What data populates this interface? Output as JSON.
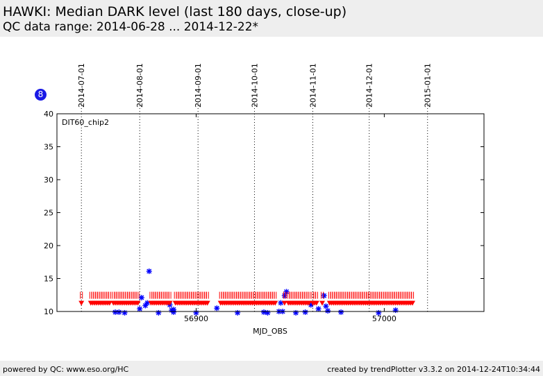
{
  "header": {
    "title": "HAWKI: Median DARK level (last 180 days, close-up)",
    "subtitle": "QC data range: 2014-06-28 ... 2014-12-22*"
  },
  "badge": {
    "label": "8",
    "color": "#1a1ae6"
  },
  "footer": {
    "left": "powered by QC: www.eso.org/HC",
    "right": "created by trendPlotter v3.3.2 on 2014-12-24T10:34:44"
  },
  "chart_data": {
    "type": "scatter",
    "title": "",
    "xlabel": "MJD_OBS",
    "ylabel": "",
    "panel_label": "DIT60_chip2",
    "xlim": [
      56826,
      57053
    ],
    "ylim": [
      10,
      40
    ],
    "x_ticks": [
      56900,
      57000
    ],
    "y_ticks": [
      10,
      15,
      20,
      25,
      30,
      35,
      40
    ],
    "date_lines": [
      {
        "label": "2014-07-01",
        "mjd": 56839
      },
      {
        "label": "2014-08-01",
        "mjd": 56870
      },
      {
        "label": "2014-09-01",
        "mjd": 56901
      },
      {
        "label": "2014-10-01",
        "mjd": 56931
      },
      {
        "label": "2014-11-01",
        "mjd": 56962
      },
      {
        "label": "2014-12-01",
        "mjd": 56992
      },
      {
        "label": "2015-01-01",
        "mjd": 57023
      }
    ],
    "series": [
      {
        "marker": "star",
        "color": "#0000ff",
        "points": [
          [
            56857,
            9.9
          ],
          [
            56859,
            9.9
          ],
          [
            56862,
            9.8
          ],
          [
            56870,
            10.4
          ],
          [
            56871,
            12.1
          ],
          [
            56873,
            10.9
          ],
          [
            56874,
            11.3
          ],
          [
            56875,
            16.1
          ],
          [
            56880,
            9.8
          ],
          [
            56886,
            11.0
          ],
          [
            56887,
            10.2
          ],
          [
            56888,
            10.3
          ],
          [
            56888,
            9.9
          ],
          [
            56900,
            9.8
          ],
          [
            56911,
            10.5
          ],
          [
            56922,
            9.8
          ],
          [
            56936,
            9.9
          ],
          [
            56938,
            9.8
          ],
          [
            56945,
            11.3
          ],
          [
            56944,
            10.0
          ],
          [
            56946,
            10.0
          ],
          [
            56947,
            12.4
          ],
          [
            56948,
            13.0
          ],
          [
            56953,
            9.8
          ],
          [
            56958,
            9.9
          ],
          [
            56961,
            11.0
          ],
          [
            56965,
            10.4
          ],
          [
            56968,
            12.4
          ],
          [
            56969,
            10.8
          ],
          [
            56970,
            10.1
          ],
          [
            56977,
            9.9
          ],
          [
            56997,
            9.8
          ],
          [
            57006,
            10.2
          ]
        ]
      },
      {
        "marker": "tri_down",
        "color": "#ff0000",
        "points": [
          [
            56839,
            11.2
          ],
          [
            56844,
            11.2
          ],
          [
            56845,
            11.2
          ],
          [
            56846,
            11.2
          ],
          [
            56847,
            11.2
          ],
          [
            56848,
            11.2
          ],
          [
            56849,
            11.2
          ],
          [
            56850,
            11.2
          ],
          [
            56851,
            11.2
          ],
          [
            56852,
            11.2
          ],
          [
            56853,
            11.2
          ],
          [
            56854,
            11.2
          ],
          [
            56856,
            11.2
          ],
          [
            56857,
            11.2
          ],
          [
            56858,
            11.2
          ],
          [
            56859,
            11.2
          ],
          [
            56860,
            11.2
          ],
          [
            56861,
            11.2
          ],
          [
            56862,
            11.2
          ],
          [
            56863,
            11.2
          ],
          [
            56864,
            11.2
          ],
          [
            56865,
            11.2
          ],
          [
            56866,
            11.2
          ],
          [
            56867,
            11.2
          ],
          [
            56868,
            11.2
          ],
          [
            56869,
            11.2
          ],
          [
            56876,
            11.2
          ],
          [
            56877,
            11.2
          ],
          [
            56878,
            11.2
          ],
          [
            56879,
            11.2
          ],
          [
            56880,
            11.2
          ],
          [
            56881,
            11.2
          ],
          [
            56882,
            11.2
          ],
          [
            56883,
            11.2
          ],
          [
            56884,
            11.2
          ],
          [
            56885,
            11.2
          ],
          [
            56886,
            11.2
          ],
          [
            56889,
            11.2
          ],
          [
            56890,
            11.2
          ],
          [
            56891,
            11.2
          ],
          [
            56892,
            11.2
          ],
          [
            56893,
            11.2
          ],
          [
            56894,
            11.2
          ],
          [
            56895,
            11.2
          ],
          [
            56896,
            11.2
          ],
          [
            56897,
            11.2
          ],
          [
            56898,
            11.2
          ],
          [
            56899,
            11.2
          ],
          [
            56900,
            11.2
          ],
          [
            56901,
            11.2
          ],
          [
            56902,
            11.2
          ],
          [
            56903,
            11.2
          ],
          [
            56904,
            11.2
          ],
          [
            56905,
            11.2
          ],
          [
            56906,
            11.2
          ],
          [
            56913,
            11.2
          ],
          [
            56914,
            11.2
          ],
          [
            56915,
            11.2
          ],
          [
            56916,
            11.2
          ],
          [
            56917,
            11.2
          ],
          [
            56918,
            11.2
          ],
          [
            56919,
            11.2
          ],
          [
            56920,
            11.2
          ],
          [
            56921,
            11.2
          ],
          [
            56922,
            11.2
          ],
          [
            56923,
            11.2
          ],
          [
            56924,
            11.2
          ],
          [
            56925,
            11.2
          ],
          [
            56926,
            11.2
          ],
          [
            56927,
            11.2
          ],
          [
            56928,
            11.2
          ],
          [
            56929,
            11.2
          ],
          [
            56930,
            11.2
          ],
          [
            56931,
            11.2
          ],
          [
            56932,
            11.2
          ],
          [
            56933,
            11.2
          ],
          [
            56934,
            11.2
          ],
          [
            56935,
            11.2
          ],
          [
            56936,
            11.2
          ],
          [
            56937,
            11.2
          ],
          [
            56938,
            11.2
          ],
          [
            56939,
            11.2
          ],
          [
            56940,
            11.2
          ],
          [
            56941,
            11.2
          ],
          [
            56942,
            11.2
          ],
          [
            56947,
            11.2
          ],
          [
            56949,
            11.2
          ],
          [
            56950,
            11.2
          ],
          [
            56951,
            11.2
          ],
          [
            56952,
            11.2
          ],
          [
            56953,
            11.2
          ],
          [
            56954,
            11.2
          ],
          [
            56955,
            11.2
          ],
          [
            56956,
            11.2
          ],
          [
            56957,
            11.2
          ],
          [
            56958,
            11.2
          ],
          [
            56959,
            11.2
          ],
          [
            56960,
            11.2
          ],
          [
            56962,
            11.2
          ],
          [
            56963,
            11.2
          ],
          [
            56964,
            11.2
          ],
          [
            56967,
            11.2
          ],
          [
            56971,
            11.2
          ],
          [
            56972,
            11.2
          ],
          [
            56973,
            11.2
          ],
          [
            56974,
            11.2
          ],
          [
            56975,
            11.2
          ],
          [
            56976,
            11.2
          ],
          [
            56977,
            11.2
          ],
          [
            56978,
            11.2
          ],
          [
            56979,
            11.2
          ],
          [
            56980,
            11.2
          ],
          [
            56981,
            11.2
          ],
          [
            56982,
            11.2
          ],
          [
            56983,
            11.2
          ],
          [
            56984,
            11.2
          ],
          [
            56985,
            11.2
          ],
          [
            56986,
            11.2
          ],
          [
            56987,
            11.2
          ],
          [
            56988,
            11.2
          ],
          [
            56989,
            11.2
          ],
          [
            56990,
            11.2
          ],
          [
            56991,
            11.2
          ],
          [
            56992,
            11.2
          ],
          [
            56993,
            11.2
          ],
          [
            56994,
            11.2
          ],
          [
            56995,
            11.2
          ],
          [
            56996,
            11.2
          ],
          [
            56997,
            11.2
          ],
          [
            56998,
            11.2
          ],
          [
            56999,
            11.2
          ],
          [
            57000,
            11.2
          ],
          [
            57001,
            11.2
          ],
          [
            57002,
            11.2
          ],
          [
            57003,
            11.2
          ],
          [
            57004,
            11.2
          ],
          [
            57005,
            11.2
          ],
          [
            57006,
            11.2
          ],
          [
            57007,
            11.2
          ],
          [
            57008,
            11.2
          ],
          [
            57009,
            11.2
          ],
          [
            57010,
            11.2
          ],
          [
            57011,
            11.2
          ],
          [
            57012,
            11.2
          ],
          [
            57013,
            11.2
          ],
          [
            57014,
            11.2
          ],
          [
            57015,
            11.2
          ]
        ]
      }
    ]
  }
}
